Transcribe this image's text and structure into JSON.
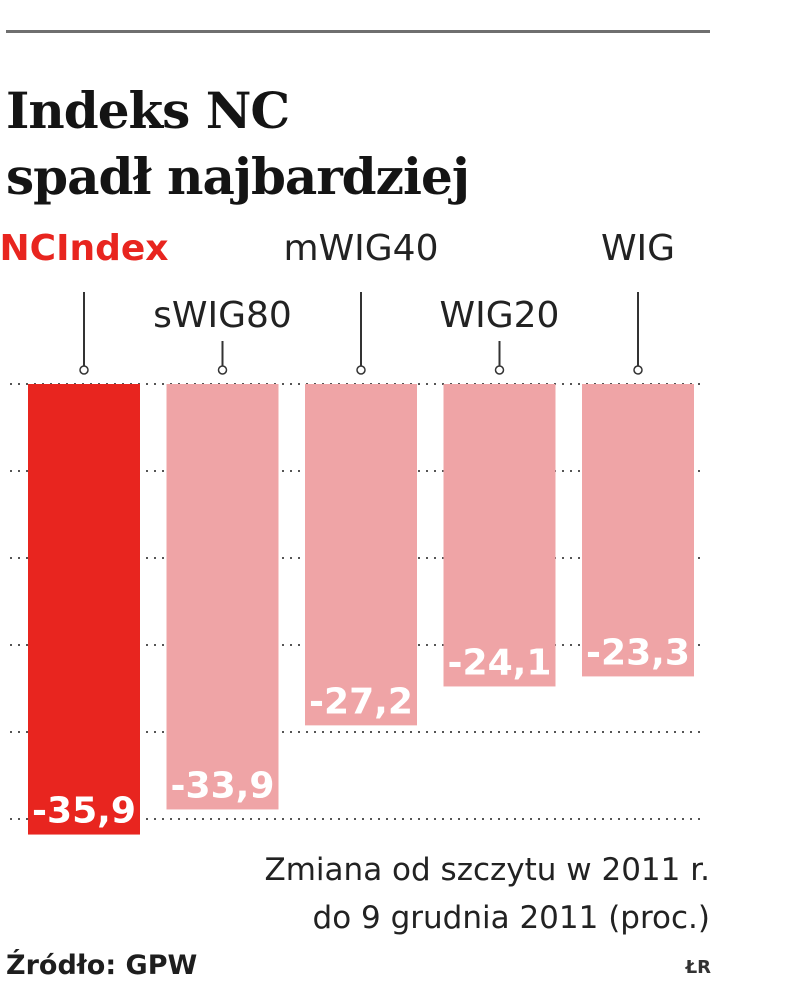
{
  "title_lines": [
    "Indeks NC",
    "spadł najbardziej"
  ],
  "subtitle_lines": [
    "Zmiana od szczytu w 2011 r.",
    "do 9 grudnia 2011 (proc.)"
  ],
  "source": "Źródło: GPW",
  "credit": "ŁR",
  "colors": {
    "highlight": "#e8251f",
    "bar": "#efa4a6",
    "label_highlight": "#e8251f",
    "text": "#222222"
  },
  "chart_data": {
    "type": "bar",
    "categories": [
      "NCIndex",
      "sWIG80",
      "mWIG40",
      "WIG20",
      "WIG"
    ],
    "values": [
      -35.9,
      -33.9,
      -27.2,
      -24.1,
      -23.3
    ],
    "value_labels": [
      "-35,9",
      "-33,9",
      "-27,2",
      "-24,1",
      "-23,3"
    ],
    "highlight": "NCIndex",
    "ylim": [
      -36,
      0
    ],
    "grid": true,
    "grid_style": "dotted",
    "legend": "none"
  }
}
